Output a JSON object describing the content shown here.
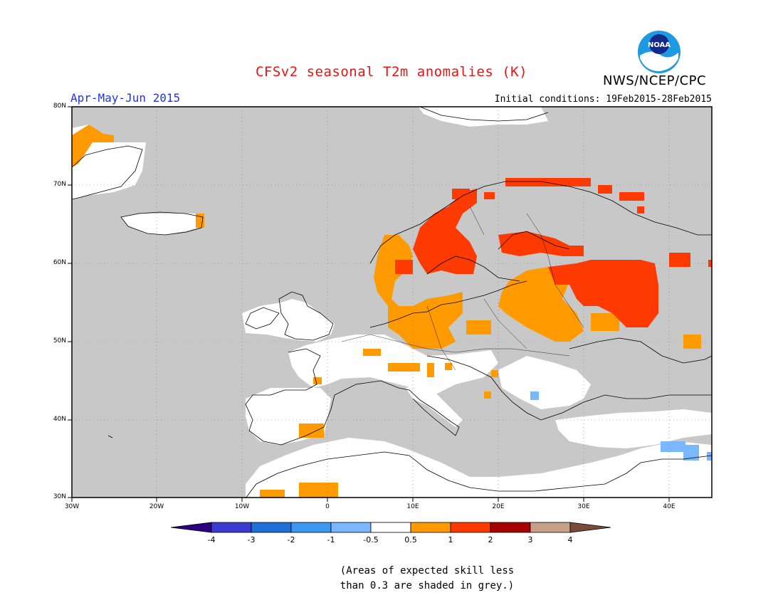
{
  "header": {
    "title": "CFSv2 seasonal T2m anomalies (K)",
    "season": "Apr-May-Jun 2015",
    "initial_conditions": "Initial conditions: 19Feb2015-28Feb2015",
    "agency": "NWS/NCEP/CPC",
    "logo_text": "NOAA"
  },
  "map": {
    "region": "Europe",
    "lon_range": [
      -30,
      45
    ],
    "lat_range": [
      30,
      80
    ],
    "lat_ticks": [
      "80N",
      "70N",
      "60N",
      "50N",
      "40N",
      "30N"
    ],
    "lon_ticks": [
      "30W",
      "20W",
      "10W",
      "0",
      "10E",
      "20E",
      "30E",
      "40E"
    ],
    "colors": {
      "ocean_grey": "#c8c8c8",
      "land_white": "#ffffff",
      "anom_0_5_to_1": "#ff9b00",
      "anom_1_to_2": "#ff3a00",
      "anom_neg_0_5_to_neg_1": "#7ab7ff"
    }
  },
  "colorbar": {
    "labels": [
      "-4",
      "-3",
      "-2",
      "-1",
      "-0.5",
      "0.5",
      "1",
      "2",
      "3",
      "4"
    ],
    "colors": [
      "#2a0080",
      "#3b3bd1",
      "#1f6fd8",
      "#3c97f0",
      "#7ab7ff",
      "#ffffff",
      "#ff9b00",
      "#ff3a00",
      "#a80000",
      "#c8a08a",
      "#7a4a3a"
    ]
  },
  "note": {
    "line1": "(Areas of expected skill less",
    "line2": "than 0.3 are shaded in grey.)"
  }
}
